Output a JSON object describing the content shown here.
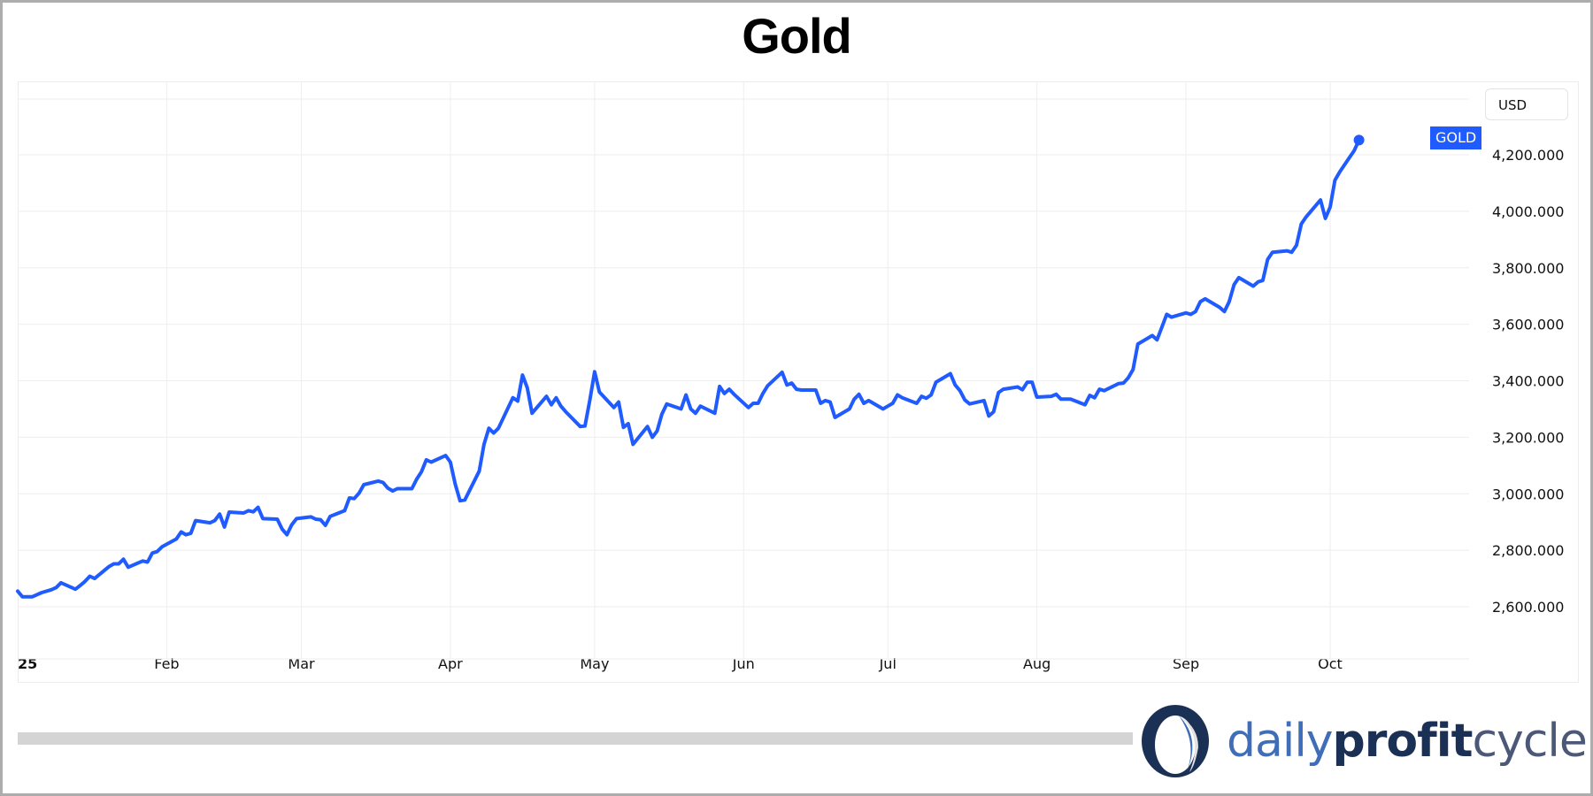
{
  "title": "Gold",
  "currency_button": "USD",
  "series_tag": "GOLD",
  "logo": {
    "part1": "daily",
    "part2": "profit",
    "part3": "cycle"
  },
  "colors": {
    "line": "#1f5bff",
    "tag_bg": "#1f5bff",
    "grid": "#eeeeee",
    "scrollbar": "#d4d4d4",
    "logo_blue": "#3f6db7",
    "logo_navy": "#1b3055",
    "logo_gray": "#4b5878"
  },
  "chart_data": {
    "type": "line",
    "title": "Gold",
    "xlabel": "",
    "ylabel": "USD",
    "ylim": [
      2540,
      4330
    ],
    "grid": true,
    "legend": "GOLD (price tag at right)",
    "x_tick_labels": [
      "25",
      "Feb",
      "Mar",
      "Apr",
      "May",
      "Jun",
      "Jul",
      "Aug",
      "Sep",
      "Oct"
    ],
    "y_tick_labels": [
      "2,600.000",
      "2,800.000",
      "3,000.000",
      "3,200.000",
      "3,400.000",
      "3,600.000",
      "3,800.000",
      "4,000.000",
      "4,200.000"
    ],
    "y_ticks": [
      2600,
      2800,
      3000,
      3200,
      3400,
      3600,
      3800,
      4000,
      4200
    ],
    "series": [
      {
        "name": "GOLD",
        "x_day_of_year": [
          1,
          2,
          4,
          6,
          8,
          9,
          10,
          13,
          14,
          15,
          16,
          17,
          20,
          21,
          22,
          23,
          24,
          27,
          28,
          29,
          30,
          31,
          34,
          35,
          36,
          37,
          38,
          41,
          42,
          43,
          44,
          45,
          48,
          49,
          50,
          51,
          52,
          55,
          56,
          57,
          58,
          59,
          62,
          63,
          64,
          65,
          66,
          69,
          70,
          71,
          72,
          73,
          76,
          77,
          78,
          79,
          80,
          83,
          84,
          85,
          86,
          87,
          90,
          91,
          92,
          93,
          94,
          97,
          98,
          99,
          100,
          101,
          104,
          105,
          106,
          107,
          108,
          111,
          112,
          113,
          114,
          115,
          118,
          119,
          120,
          121,
          122,
          125,
          126,
          127,
          128,
          129,
          132,
          133,
          134,
          135,
          136,
          139,
          140,
          141,
          142,
          143,
          146,
          147,
          148,
          149,
          150,
          153,
          154,
          155,
          156,
          157,
          160,
          161,
          162,
          163,
          164,
          167,
          168,
          169,
          170,
          171,
          174,
          175,
          176,
          177,
          178,
          181,
          182,
          183,
          184,
          185,
          188,
          189,
          190,
          191,
          192,
          195,
          196,
          197,
          198,
          199,
          202,
          203,
          204,
          205,
          206,
          209,
          210,
          211,
          212,
          213,
          216,
          217,
          218,
          219,
          220,
          223,
          224,
          225,
          226,
          227,
          230,
          231,
          232,
          233,
          234,
          237,
          238,
          239,
          240,
          241,
          244,
          245,
          246,
          247,
          248,
          251,
          252,
          253,
          254,
          255,
          258,
          259,
          260,
          261,
          262,
          265,
          266,
          267,
          268,
          269,
          272,
          273,
          274,
          275,
          276,
          279,
          280,
          281,
          282,
          283,
          286,
          287,
          288,
          289,
          290
        ],
        "values": [
          2655,
          2635,
          2635,
          2650,
          2660,
          2668,
          2685,
          2662,
          2675,
          2690,
          2708,
          2700,
          2742,
          2752,
          2752,
          2768,
          2740,
          2762,
          2758,
          2790,
          2795,
          2812,
          2840,
          2865,
          2855,
          2860,
          2905,
          2897,
          2905,
          2928,
          2882,
          2935,
          2932,
          2940,
          2936,
          2952,
          2912,
          2910,
          2875,
          2855,
          2890,
          2912,
          2918,
          2910,
          2908,
          2888,
          2920,
          2940,
          2985,
          2983,
          3002,
          3032,
          3045,
          3040,
          3020,
          3010,
          3018,
          3018,
          3052,
          3078,
          3120,
          3112,
          3135,
          3112,
          3035,
          2975,
          2978,
          3080,
          3175,
          3232,
          3215,
          3232,
          3340,
          3328,
          3420,
          3375,
          3285,
          3345,
          3315,
          3340,
          3310,
          3290,
          3238,
          3240,
          3330,
          3432,
          3360,
          3305,
          3325,
          3235,
          3248,
          3175,
          3238,
          3200,
          3222,
          3282,
          3318,
          3300,
          3350,
          3300,
          3285,
          3310,
          3285,
          3380,
          3355,
          3370,
          3352,
          3305,
          3320,
          3320,
          3355,
          3382,
          3430,
          3385,
          3392,
          3370,
          3367,
          3367,
          3320,
          3330,
          3325,
          3270,
          3300,
          3335,
          3352,
          3320,
          3330,
          3300,
          3310,
          3320,
          3350,
          3340,
          3320,
          3345,
          3338,
          3350,
          3395,
          3425,
          3385,
          3365,
          3332,
          3318,
          3330,
          3275,
          3290,
          3358,
          3370,
          3378,
          3368,
          3395,
          3395,
          3342,
          3345,
          3352,
          3335,
          3335,
          3335,
          3315,
          3348,
          3340,
          3370,
          3365,
          3390,
          3392,
          3410,
          3440,
          3530,
          3560,
          3545,
          3590,
          3635,
          3625,
          3640,
          3635,
          3645,
          3680,
          3690,
          3660,
          3645,
          3680,
          3740,
          3765,
          3735,
          3750,
          3755,
          3830,
          3855,
          3860,
          3855,
          3880,
          3955,
          3980,
          4040,
          3975,
          4015,
          4110,
          4140,
          4215,
          4252
        ]
      }
    ],
    "last_value_marker": true
  }
}
